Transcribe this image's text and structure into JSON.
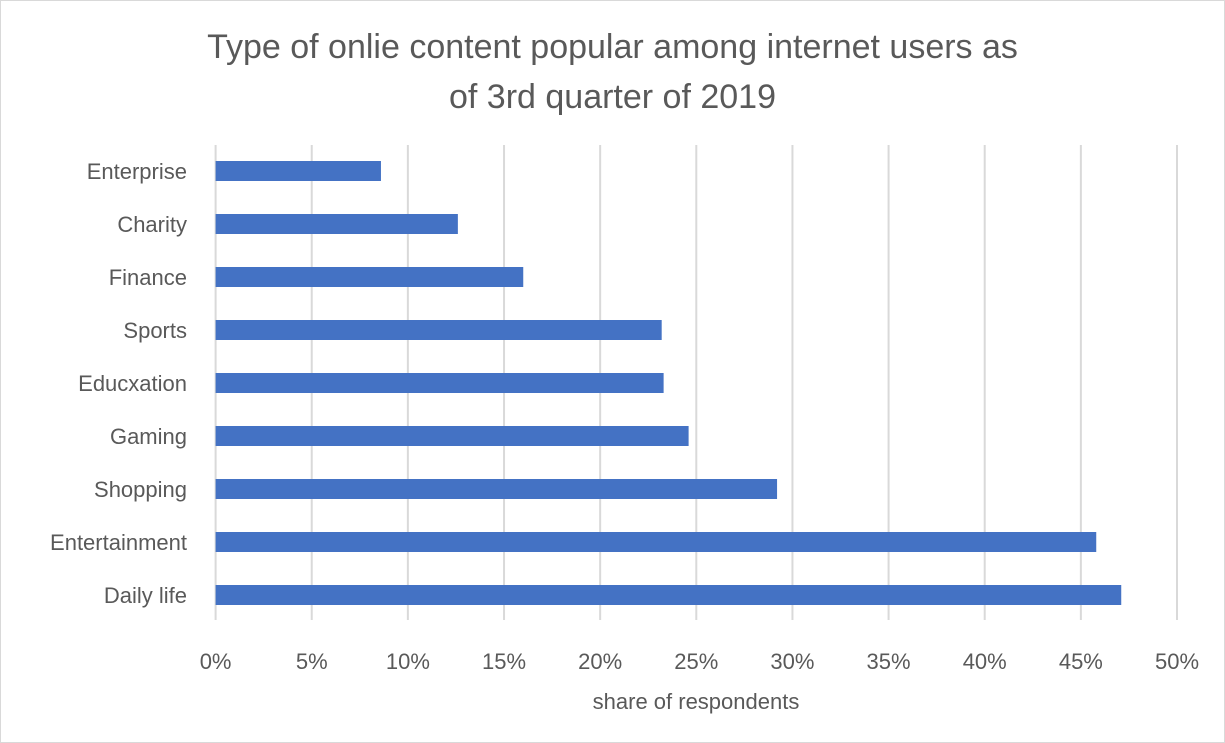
{
  "chart_data": {
    "type": "bar",
    "orientation": "horizontal",
    "title_lines": [
      "Type of onlie content popular among internet users  as",
      "of 3rd quarter of 2019"
    ],
    "categories": [
      "Enterprise",
      "Charity",
      "Finance",
      "Sports",
      "Educxation",
      "Gaming",
      "Shopping",
      "Entertainment",
      "Daily life"
    ],
    "values": [
      8.6,
      12.6,
      16.0,
      23.2,
      23.3,
      24.6,
      29.2,
      45.8,
      47.1
    ],
    "xlabel": "share of respondents",
    "ylabel": "",
    "xlim": [
      0,
      50
    ],
    "x_ticks": [
      "0%",
      "5%",
      "10%",
      "15%",
      "20%",
      "25%",
      "30%",
      "35%",
      "40%",
      "45%",
      "50%"
    ],
    "grid": true,
    "bar_color": "#4472C4",
    "grid_color": "#D9D9D9"
  }
}
